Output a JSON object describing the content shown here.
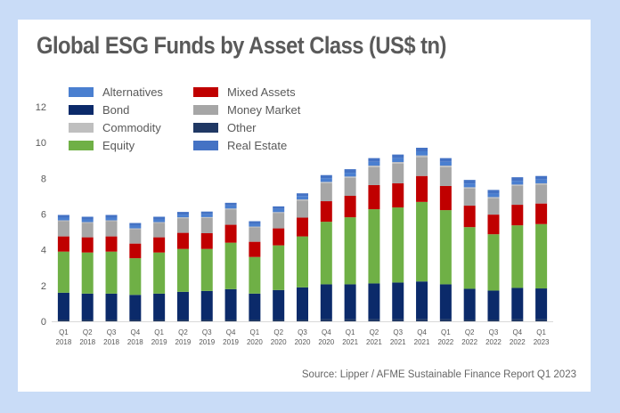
{
  "chart_data": {
    "type": "bar",
    "stacked": true,
    "title": "Global ESG Funds by Asset Class (US$ tn)",
    "source": "Source: Lipper / AFME Sustainable Finance Report Q1 2023",
    "categories": [
      [
        "Q1",
        "2018"
      ],
      [
        "Q2",
        "2018"
      ],
      [
        "Q3",
        "2018"
      ],
      [
        "Q4",
        "2018"
      ],
      [
        "Q1",
        "2019"
      ],
      [
        "Q2",
        "2019"
      ],
      [
        "Q3",
        "2019"
      ],
      [
        "Q4",
        "2019"
      ],
      [
        "Q1",
        "2020"
      ],
      [
        "Q2",
        "2020"
      ],
      [
        "Q3",
        "2020"
      ],
      [
        "Q4",
        "2020"
      ],
      [
        "Q1",
        "2021"
      ],
      [
        "Q2",
        "2021"
      ],
      [
        "Q3",
        "2021"
      ],
      [
        "Q4",
        "2021"
      ],
      [
        "Q1",
        "2022"
      ],
      [
        "Q2",
        "2022"
      ],
      [
        "Q3",
        "2022"
      ],
      [
        "Q4",
        "2022"
      ],
      [
        "Q1",
        "2023"
      ]
    ],
    "ylim": [
      0,
      12
    ],
    "yticks": [
      0,
      2,
      4,
      6,
      8,
      10,
      12
    ],
    "grid": false,
    "legend_position": "top-left",
    "legend_order": [
      "Alternatives",
      "Mixed Assets",
      "Bond",
      "Money Market",
      "Commodity",
      "Other",
      "Equity",
      "Real Estate"
    ],
    "stack_order": [
      "Other",
      "Bond",
      "Equity",
      "Mixed Assets",
      "Money Market",
      "Commodity",
      "Alternatives",
      "Real Estate"
    ],
    "series": [
      {
        "name": "Alternatives",
        "color": "#4a7fd0",
        "values": [
          0.15,
          0.15,
          0.15,
          0.15,
          0.15,
          0.15,
          0.16,
          0.17,
          0.15,
          0.17,
          0.19,
          0.2,
          0.21,
          0.22,
          0.22,
          0.23,
          0.22,
          0.21,
          0.2,
          0.21,
          0.21
        ]
      },
      {
        "name": "Bond",
        "color": "#0b2a6a",
        "values": [
          1.5,
          1.45,
          1.45,
          1.38,
          1.45,
          1.55,
          1.6,
          1.7,
          1.45,
          1.65,
          1.8,
          1.95,
          1.95,
          2.0,
          2.05,
          2.1,
          1.95,
          1.72,
          1.62,
          1.75,
          1.72
        ]
      },
      {
        "name": "Commodity",
        "color": "#bfbfbf",
        "values": [
          0.05,
          0.05,
          0.05,
          0.05,
          0.05,
          0.05,
          0.05,
          0.06,
          0.05,
          0.06,
          0.07,
          0.08,
          0.08,
          0.09,
          0.09,
          0.1,
          0.09,
          0.08,
          0.08,
          0.08,
          0.08
        ]
      },
      {
        "name": "Equity",
        "color": "#6fb046",
        "values": [
          2.3,
          2.3,
          2.35,
          2.05,
          2.3,
          2.4,
          2.35,
          2.6,
          2.05,
          2.5,
          2.85,
          3.5,
          3.75,
          4.15,
          4.2,
          4.45,
          4.15,
          3.45,
          3.15,
          3.5,
          3.6
        ]
      },
      {
        "name": "Mixed Assets",
        "color": "#c00000",
        "values": [
          0.85,
          0.85,
          0.85,
          0.82,
          0.85,
          0.9,
          0.88,
          1.0,
          0.85,
          0.95,
          1.05,
          1.15,
          1.2,
          1.35,
          1.35,
          1.45,
          1.35,
          1.2,
          1.1,
          1.15,
          1.15
        ]
      },
      {
        "name": "Money Market",
        "color": "#a6a6a6",
        "values": [
          0.85,
          0.8,
          0.85,
          0.8,
          0.8,
          0.82,
          0.85,
          0.85,
          0.8,
          0.85,
          0.95,
          1.0,
          1.0,
          1.0,
          1.1,
          1.05,
          1.05,
          0.95,
          0.9,
          1.05,
          1.05
        ]
      },
      {
        "name": "Other",
        "color": "#203864",
        "values": [
          0.1,
          0.1,
          0.1,
          0.1,
          0.1,
          0.1,
          0.1,
          0.1,
          0.1,
          0.1,
          0.1,
          0.12,
          0.12,
          0.12,
          0.12,
          0.13,
          0.12,
          0.1,
          0.1,
          0.12,
          0.12
        ]
      },
      {
        "name": "Real Estate",
        "color": "#4472c4",
        "values": [
          0.15,
          0.15,
          0.15,
          0.15,
          0.15,
          0.15,
          0.15,
          0.15,
          0.15,
          0.15,
          0.15,
          0.18,
          0.2,
          0.2,
          0.2,
          0.2,
          0.2,
          0.2,
          0.2,
          0.2,
          0.2
        ]
      }
    ]
  }
}
